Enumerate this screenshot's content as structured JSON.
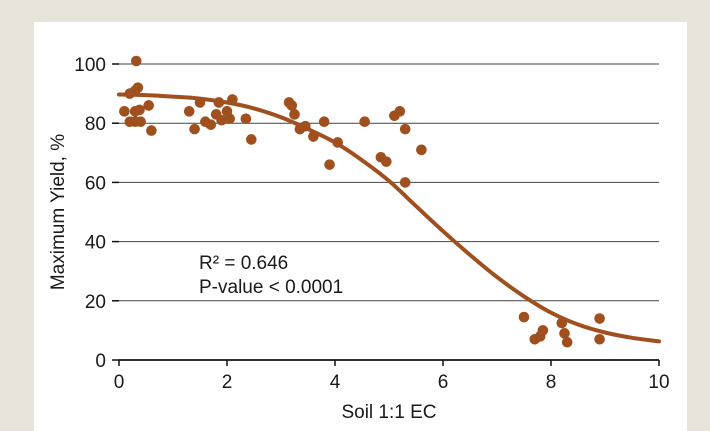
{
  "chart_data": {
    "type": "scatter",
    "xlabel": "Soil 1:1 EC",
    "ylabel": "Maximum Yield, %",
    "xlim": [
      0,
      10
    ],
    "ylim": [
      0,
      100
    ],
    "xticks": [
      0,
      2,
      4,
      6,
      8,
      10
    ],
    "yticks": [
      0,
      20,
      40,
      60,
      80,
      100
    ],
    "grid": "horizontal",
    "colors": {
      "points": "#a0501e",
      "curve": "#a0501e",
      "grid": "#444444",
      "background": "#e9e4da"
    },
    "annotations": [
      "R² = 0.646",
      "P-value < 0.0001"
    ],
    "points": [
      [
        0.1,
        84
      ],
      [
        0.2,
        80.5
      ],
      [
        0.2,
        90
      ],
      [
        0.3,
        91
      ],
      [
        0.3,
        84
      ],
      [
        0.3,
        80.5
      ],
      [
        0.32,
        101
      ],
      [
        0.35,
        92
      ],
      [
        0.38,
        84.5
      ],
      [
        0.4,
        80.5
      ],
      [
        0.55,
        86
      ],
      [
        0.6,
        77.5
      ],
      [
        1.3,
        84
      ],
      [
        1.4,
        78
      ],
      [
        1.5,
        87
      ],
      [
        1.6,
        80.5
      ],
      [
        1.7,
        79.5
      ],
      [
        1.8,
        83
      ],
      [
        1.85,
        87
      ],
      [
        1.9,
        81
      ],
      [
        2.0,
        84
      ],
      [
        2.05,
        81.5
      ],
      [
        2.1,
        88
      ],
      [
        2.35,
        81.5
      ],
      [
        2.45,
        74.5
      ],
      [
        3.15,
        87
      ],
      [
        3.2,
        86
      ],
      [
        3.25,
        83
      ],
      [
        3.35,
        78
      ],
      [
        3.45,
        79
      ],
      [
        3.6,
        75.5
      ],
      [
        3.8,
        80.5
      ],
      [
        3.9,
        66
      ],
      [
        4.05,
        73.5
      ],
      [
        4.55,
        80.5
      ],
      [
        4.85,
        68.5
      ],
      [
        4.95,
        67
      ],
      [
        5.1,
        82.5
      ],
      [
        5.2,
        84
      ],
      [
        5.3,
        78
      ],
      [
        5.3,
        60
      ],
      [
        5.6,
        71
      ],
      [
        7.5,
        14.5
      ],
      [
        7.7,
        7
      ],
      [
        7.8,
        8
      ],
      [
        7.85,
        10
      ],
      [
        8.2,
        12.5
      ],
      [
        8.25,
        9
      ],
      [
        8.3,
        6
      ],
      [
        8.9,
        14
      ],
      [
        8.9,
        7
      ]
    ],
    "fit_curve": [
      [
        0.0,
        89.7
      ],
      [
        0.5,
        89.5
      ],
      [
        1.0,
        89.0
      ],
      [
        1.5,
        88.3
      ],
      [
        2.0,
        87.0
      ],
      [
        2.5,
        85.0
      ],
      [
        3.0,
        82.0
      ],
      [
        3.5,
        78.0
      ],
      [
        4.0,
        73.5
      ],
      [
        4.5,
        67.5
      ],
      [
        5.0,
        60.5
      ],
      [
        5.5,
        52.0
      ],
      [
        6.0,
        43.5
      ],
      [
        6.5,
        35.5
      ],
      [
        7.0,
        28.0
      ],
      [
        7.5,
        21.5
      ],
      [
        8.0,
        16.0
      ],
      [
        8.5,
        12.0
      ],
      [
        9.0,
        9.3
      ],
      [
        9.5,
        7.5
      ],
      [
        10.0,
        6.3
      ]
    ]
  }
}
